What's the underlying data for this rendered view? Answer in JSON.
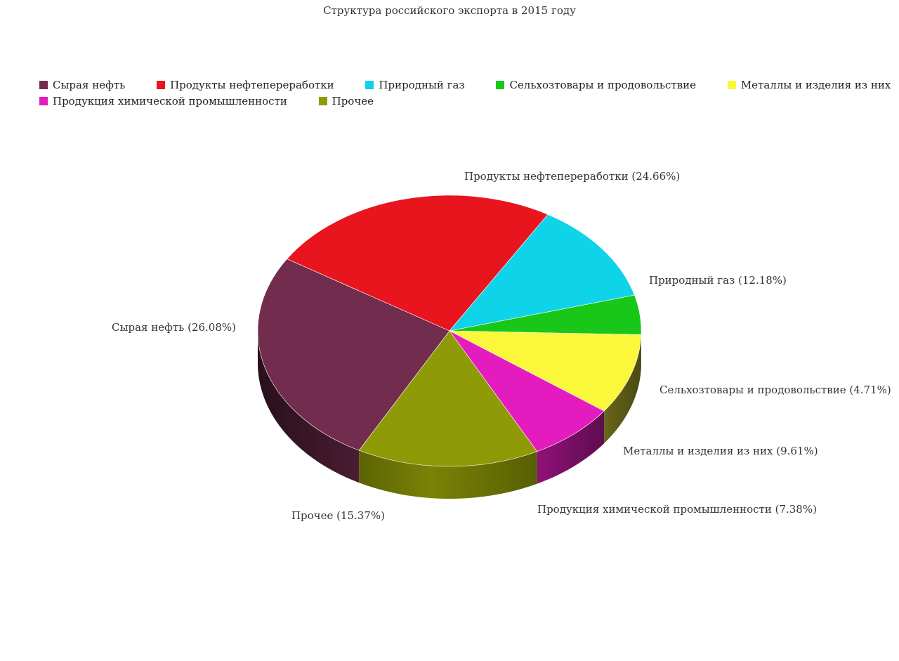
{
  "chart_data": {
    "type": "pie",
    "title": "Структура российского экспорта в 2015 году",
    "legend_position": "top",
    "style": "3d",
    "categories": [
      "Сырая нефть",
      "Продукты нефтепереработки",
      "Природный газ",
      "Сельхозтовары и продовольствие",
      "Металлы и изделия из них",
      "Продукция химической промышленности",
      "Прочее"
    ],
    "values": [
      26.08,
      24.66,
      12.18,
      4.71,
      9.61,
      7.38,
      15.37
    ],
    "data_labels": [
      "Сырая нефть (26.08%)",
      "Продукты нефтепереработки (24.66%)",
      "Природный газ (12.18%)",
      "Сельхозтовары и продовольствие (4.71%)",
      "Металлы и изделия из них (9.61%)",
      "Продукция химической промышленности (7.38%)",
      "Прочее (15.37%)"
    ],
    "colors": [
      "#722d4e",
      "#e8141e",
      "#0fd3e8",
      "#19c719",
      "#fbf73b",
      "#e41cbf",
      "#8e9a06"
    ]
  }
}
